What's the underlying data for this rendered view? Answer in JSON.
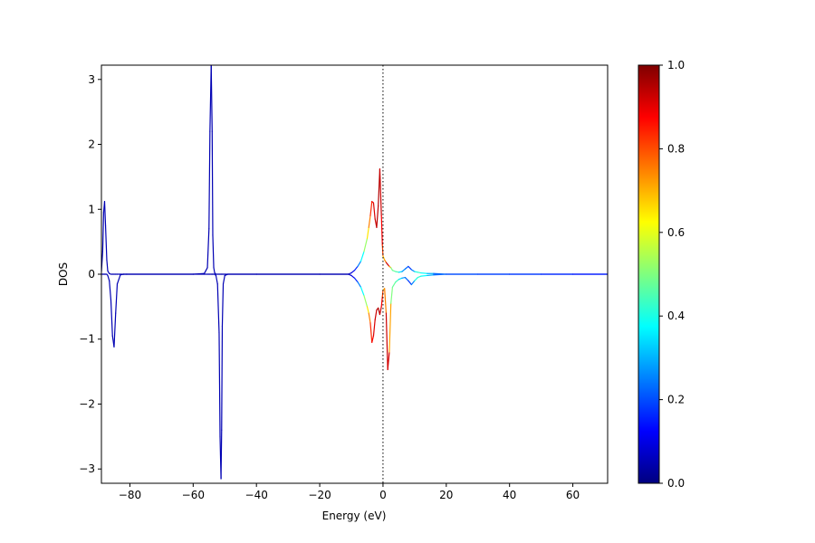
{
  "chart_data": {
    "type": "line",
    "title": "",
    "xlabel": "Energy (eV)",
    "ylabel": "DOS",
    "xlim": [
      -89,
      71
    ],
    "ylim": [
      -3.22,
      3.22
    ],
    "xticks": [
      -80,
      -60,
      -40,
      -20,
      0,
      20,
      40,
      60
    ],
    "xtick_labels": [
      "−80",
      "−60",
      "−40",
      "−20",
      "0",
      "20",
      "40",
      "60"
    ],
    "yticks": [
      -3,
      -2,
      -1,
      0,
      1,
      2,
      3
    ],
    "ytick_labels": [
      "−3",
      "−2",
      "−1",
      "0",
      "1",
      "2",
      "3"
    ],
    "grid": false,
    "fermi_level": 0,
    "colormap": "jet",
    "colorbar": {
      "range": [
        0,
        1
      ],
      "ticks": [
        0.0,
        0.2,
        0.4,
        0.6,
        0.8,
        1.0
      ],
      "tick_labels": [
        "0.0",
        "0.2",
        "0.4",
        "0.6",
        "0.8",
        "1.0"
      ]
    },
    "series": [
      {
        "x": [
          -89,
          -88.6,
          -88.3,
          -88.0,
          -87.7,
          -87.3,
          -87.0,
          -86.5,
          -86.0,
          -85.5,
          -85.0,
          -84.5,
          -84.0,
          -83.0,
          -82.0,
          -81.0,
          -60.0,
          -56.5,
          -55.5,
          -55.0,
          -54.7,
          -54.3,
          -54.0,
          -53.8,
          -53.5,
          -53.2,
          -52.8,
          -52.3,
          -51.8,
          -51.5,
          -51.2,
          -51.0,
          -50.8,
          -50.5,
          -50.0,
          -49.0,
          -40.0,
          -20.0,
          -11.0,
          -10.0,
          -9.0,
          -8.0,
          -7.0,
          -6.0,
          -5.0,
          -4.5,
          -4.0,
          -3.5,
          -3.0,
          -2.5,
          -2.0,
          -1.5,
          -1.0,
          -0.5,
          -0.2,
          0.0,
          0.5,
          1.0,
          1.5,
          2.0,
          2.5,
          3.0,
          4.0,
          5.0,
          6.0,
          7.0,
          8.0,
          9.0,
          10.0,
          11.0,
          12.0,
          14.0,
          16.0,
          20.0,
          30.0,
          40.0,
          50.0,
          60.0,
          71.0
        ],
        "up": [
          0.04,
          0.35,
          0.95,
          1.12,
          0.75,
          0.22,
          0.05,
          0.01,
          0.0,
          0.0,
          0.0,
          0.0,
          0.0,
          0.0,
          0.0,
          0.0,
          0.0,
          0.01,
          0.1,
          0.7,
          2.2,
          3.22,
          2.2,
          0.6,
          0.1,
          0.02,
          0.0,
          0.0,
          0.0,
          0.0,
          0.0,
          0.0,
          0.0,
          0.0,
          0.0,
          0.0,
          0.0,
          0.0,
          0.0,
          0.02,
          0.06,
          0.12,
          0.2,
          0.35,
          0.55,
          0.72,
          0.9,
          1.12,
          1.1,
          0.85,
          0.72,
          1.05,
          1.62,
          0.9,
          0.45,
          0.28,
          0.22,
          0.18,
          0.15,
          0.12,
          0.1,
          0.06,
          0.04,
          0.03,
          0.04,
          0.08,
          0.12,
          0.07,
          0.04,
          0.03,
          0.02,
          0.01,
          0.01,
          0.0,
          0.0,
          0.0,
          0.0,
          0.0,
          0.0
        ],
        "down": [
          0.0,
          0.0,
          0.0,
          0.0,
          0.0,
          0.0,
          -0.02,
          -0.1,
          -0.4,
          -0.95,
          -1.12,
          -0.6,
          -0.15,
          -0.01,
          0.0,
          0.0,
          0.0,
          0.0,
          0.0,
          0.0,
          0.0,
          0.0,
          0.0,
          0.0,
          0.0,
          0.0,
          -0.02,
          -0.15,
          -0.9,
          -2.5,
          -3.15,
          -2.4,
          -0.8,
          -0.15,
          -0.02,
          0.0,
          0.0,
          0.0,
          0.0,
          -0.02,
          -0.06,
          -0.12,
          -0.2,
          -0.33,
          -0.5,
          -0.6,
          -0.75,
          -1.05,
          -0.95,
          -0.7,
          -0.55,
          -0.52,
          -0.62,
          -0.5,
          -0.35,
          -0.25,
          -0.22,
          -0.6,
          -1.47,
          -1.2,
          -0.45,
          -0.2,
          -0.12,
          -0.08,
          -0.06,
          -0.05,
          -0.1,
          -0.16,
          -0.1,
          -0.05,
          -0.03,
          -0.02,
          -0.01,
          0.0,
          0.0,
          0.0,
          0.0,
          0.0,
          0.0
        ],
        "weight": [
          0.05,
          0.05,
          0.05,
          0.05,
          0.05,
          0.05,
          0.05,
          0.05,
          0.05,
          0.05,
          0.05,
          0.05,
          0.05,
          0.05,
          0.05,
          0.05,
          0.05,
          0.05,
          0.05,
          0.05,
          0.05,
          0.05,
          0.05,
          0.05,
          0.05,
          0.05,
          0.05,
          0.05,
          0.05,
          0.05,
          0.05,
          0.05,
          0.05,
          0.05,
          0.05,
          0.05,
          0.05,
          0.05,
          0.05,
          0.08,
          0.12,
          0.2,
          0.3,
          0.45,
          0.6,
          0.7,
          0.8,
          0.87,
          0.9,
          0.92,
          0.93,
          0.95,
          0.95,
          0.9,
          0.85,
          0.78,
          0.6,
          0.9,
          0.95,
          0.88,
          0.55,
          0.45,
          0.5,
          0.4,
          0.3,
          0.25,
          0.2,
          0.15,
          0.35,
          0.45,
          0.4,
          0.35,
          0.25,
          0.2,
          0.2,
          0.18,
          0.18,
          0.15,
          0.15
        ]
      }
    ]
  }
}
